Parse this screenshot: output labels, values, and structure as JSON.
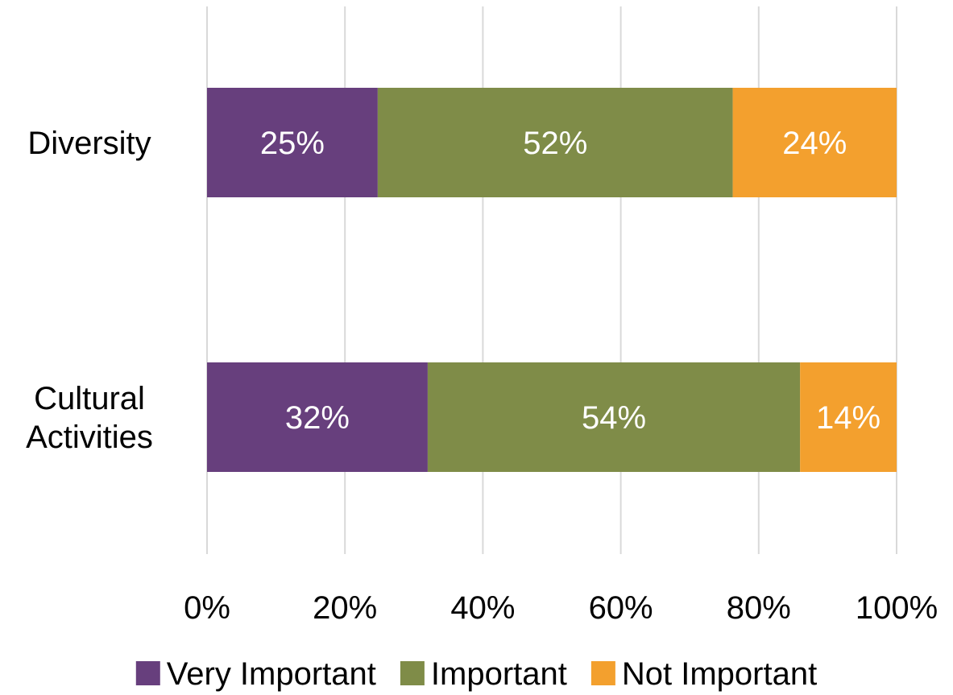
{
  "chart_data": {
    "type": "bar",
    "orientation": "horizontal",
    "stacked": "percent",
    "categories": [
      [
        "Diversity"
      ],
      [
        "Cultural",
        "Activities"
      ]
    ],
    "series": [
      {
        "name": "Very Important",
        "color": "#673F7D",
        "values": [
          25,
          32
        ]
      },
      {
        "name": "Important",
        "color": "#7F8C48",
        "values": [
          52,
          54
        ]
      },
      {
        "name": "Not Important",
        "color": "#F3A02E",
        "values": [
          24,
          14
        ]
      }
    ],
    "data_labels": [
      [
        "25%",
        "32%"
      ],
      [
        "52%",
        "54%"
      ],
      [
        "24%",
        "14%"
      ]
    ],
    "xaxis": {
      "ticks": [
        0,
        20,
        40,
        60,
        80,
        100
      ],
      "tick_labels": [
        "0%",
        "20%",
        "40%",
        "60%",
        "80%",
        "100%"
      ],
      "range": [
        0,
        100
      ]
    },
    "grid": "vertical",
    "grid_color": "#D9D9D9",
    "legend": {
      "position": "bottom"
    },
    "title": "",
    "xlabel": "",
    "ylabel": ""
  }
}
